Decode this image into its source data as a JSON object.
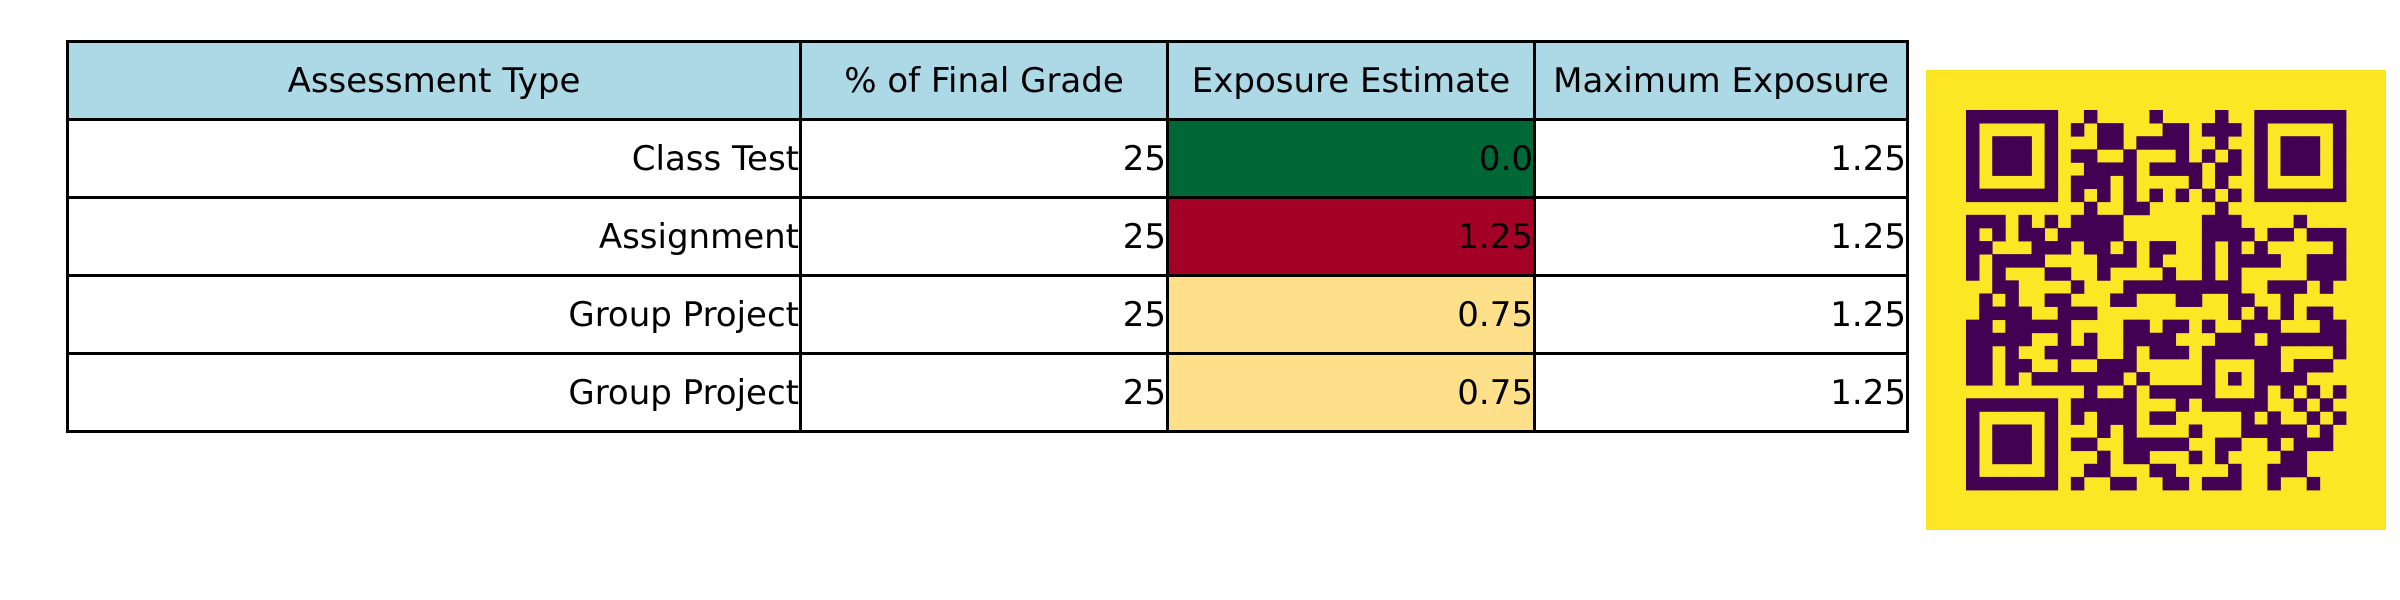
{
  "chart_data": {
    "type": "table",
    "columns": [
      "Assessment Type",
      "% of Final Grade",
      "Exposure Estimate",
      "Maximum Exposure"
    ],
    "header_color": "#add8e6",
    "rows": [
      {
        "cells": [
          "Class Test",
          "25",
          "0.0",
          "1.25"
        ],
        "estimate_color": "#006837"
      },
      {
        "cells": [
          "Assignment",
          "25",
          "1.25",
          "1.25"
        ],
        "estimate_color": "#a50026"
      },
      {
        "cells": [
          "Group Project",
          "25",
          "0.75",
          "1.25"
        ],
        "estimate_color": "#fee08b"
      },
      {
        "cells": [
          "Group Project",
          "25",
          "0.75",
          "1.25"
        ],
        "estimate_color": "#fee08b"
      }
    ]
  },
  "qr_code": {
    "background_color": "#fde725",
    "module_color": "#440154"
  }
}
